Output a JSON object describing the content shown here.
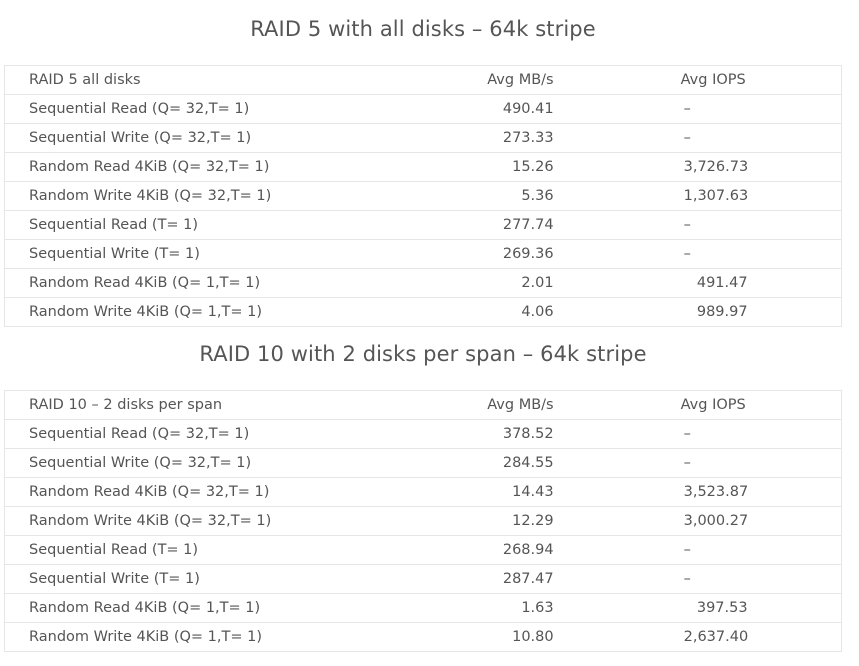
{
  "sections": [
    {
      "title": "RAID 5 with all disks – 64k stripe",
      "headers": {
        "name": "RAID 5 all disks",
        "mbps": "Avg MB/s",
        "iops": "Avg IOPS"
      },
      "rows": [
        {
          "name": "Sequential Read (Q= 32,T= 1)",
          "mbps": "490.41",
          "iops": "–"
        },
        {
          "name": "Sequential Write (Q= 32,T= 1)",
          "mbps": "273.33",
          "iops": "–"
        },
        {
          "name": "Random Read 4KiB (Q= 32,T= 1)",
          "mbps": "15.26",
          "iops": "3,726.73"
        },
        {
          "name": "Random Write 4KiB (Q= 32,T= 1)",
          "mbps": "5.36",
          "iops": "1,307.63"
        },
        {
          "name": "Sequential Read (T= 1)",
          "mbps": "277.74",
          "iops": "–"
        },
        {
          "name": "Sequential Write (T= 1)",
          "mbps": "269.36",
          "iops": "–"
        },
        {
          "name": "Random Read 4KiB (Q= 1,T= 1)",
          "mbps": "2.01",
          "iops": "491.47"
        },
        {
          "name": "Random Write 4KiB (Q= 1,T= 1)",
          "mbps": "4.06",
          "iops": "989.97"
        }
      ]
    },
    {
      "title": "RAID 10 with 2 disks per span – 64k stripe",
      "headers": {
        "name": "RAID 10 – 2 disks per span",
        "mbps": "Avg MB/s",
        "iops": "Avg IOPS"
      },
      "rows": [
        {
          "name": "Sequential Read (Q= 32,T= 1)",
          "mbps": "378.52",
          "iops": "–"
        },
        {
          "name": "Sequential Write (Q= 32,T= 1)",
          "mbps": "284.55",
          "iops": "–"
        },
        {
          "name": "Random Read 4KiB (Q= 32,T= 1)",
          "mbps": "14.43",
          "iops": "3,523.87"
        },
        {
          "name": "Random Write 4KiB (Q= 32,T= 1)",
          "mbps": "12.29",
          "iops": "3,000.27"
        },
        {
          "name": "Sequential Read (T= 1)",
          "mbps": "268.94",
          "iops": "–"
        },
        {
          "name": "Sequential Write (T= 1)",
          "mbps": "287.47",
          "iops": "–"
        },
        {
          "name": "Random Read 4KiB (Q= 1,T= 1)",
          "mbps": "1.63",
          "iops": "397.53"
        },
        {
          "name": "Random Write 4KiB (Q= 1,T= 1)",
          "mbps": "10.80",
          "iops": "2,637.40"
        }
      ]
    }
  ]
}
